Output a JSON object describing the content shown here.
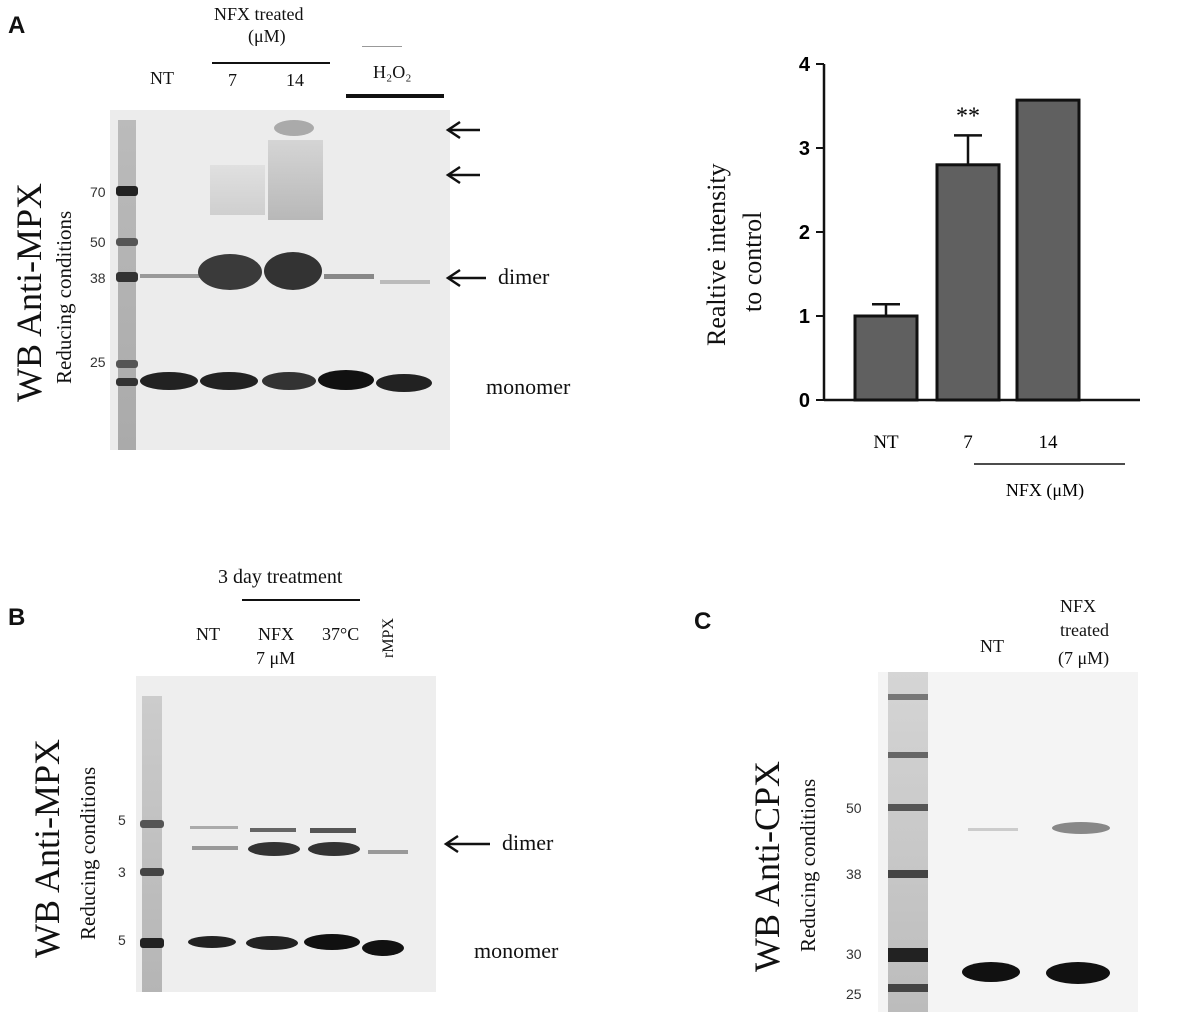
{
  "panelA": {
    "letter": "A",
    "wb_label": "WB Anti-MPX",
    "conditions": "Reducing  conditions",
    "header_line1": "NFX treated",
    "header_line2": "(μM)",
    "lanes": [
      "NT",
      "7",
      "14"
    ],
    "h2o2": "H₂O₂",
    "markers": [
      "70",
      "50",
      "38",
      "25"
    ],
    "dimer": "dimer",
    "monomer": "monomer"
  },
  "chart": {
    "ylabel_line1": "Realtive intensity",
    "ylabel_line2": "to control",
    "group_label": "NFX (μM)",
    "significance": "**"
  },
  "chart_data": {
    "type": "bar",
    "categories": [
      "NT",
      "7",
      "14"
    ],
    "values": [
      1.0,
      2.8,
      3.57
    ],
    "errors": [
      0.14,
      0.35,
      0
    ],
    "ylim": [
      0,
      4
    ],
    "yticks": [
      "0",
      "1",
      "2",
      "3",
      "4"
    ],
    "bar_color": "#606060"
  },
  "panelB": {
    "letter": "B",
    "wb_label": "WB Anti-MPX",
    "conditions": "Reducing  conditions",
    "header": "3 day treatment",
    "lane_nt": "NT",
    "lane_nfx1": "NFX",
    "lane_nfx2": "7 μM",
    "lane_37": "37°C",
    "lane_rmpx": "rMPX",
    "markers": [
      "5",
      "3",
      "5"
    ],
    "dimer": "dimer",
    "monomer": "monomer"
  },
  "panelC": {
    "letter": "C",
    "wb_label": "WB Anti-CPX",
    "conditions": "Reducing  conditions",
    "lane_nt": "NT",
    "lane_nfx1": "NFX",
    "lane_nfx2": "treated",
    "lane_nfx3": "(7 μM)",
    "markers": [
      "50",
      "38",
      "30",
      "25"
    ]
  }
}
